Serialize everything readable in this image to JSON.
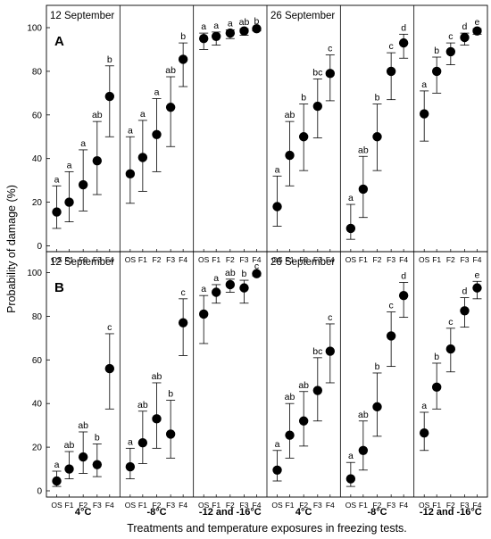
{
  "chart_data": {
    "type": "scatter",
    "ylabel": "Probability of damage (%)",
    "xlabel": "Treatments and temperature exposures in freezing tests.",
    "ylim": [
      0,
      100
    ],
    "y_ticks": [
      "0",
      "20",
      "40",
      "60",
      "80",
      "100"
    ],
    "categories": [
      "OS",
      "F1",
      "F2",
      "F3",
      "F4"
    ],
    "temperature_groups": [
      "4°C",
      "-8°C",
      "-12 and -16°C",
      "4°C",
      "-8°C",
      "-12 and -16°C"
    ],
    "rows": [
      {
        "label": "A",
        "dates": [
          {
            "text": "12 September",
            "at": 0
          },
          {
            "text": "26 September",
            "at": 3
          }
        ],
        "panels": [
          {
            "values": [
              15.5,
              20,
              28,
              39,
              68.5
            ],
            "lower": [
              8,
              11,
              16,
              23.5,
              50
            ],
            "upper": [
              27.5,
              34,
              44,
              57,
              82.5
            ],
            "letters": [
              "a",
              "a",
              "a",
              "ab",
              "b"
            ]
          },
          {
            "values": [
              33,
              40.5,
              51,
              63.5,
              85.5
            ],
            "lower": [
              19.5,
              25,
              34,
              45.5,
              73
            ],
            "upper": [
              50,
              57.5,
              67.5,
              77.5,
              93
            ],
            "letters": [
              "a",
              "a",
              "a",
              "ab",
              "b"
            ]
          },
          {
            "values": [
              95,
              96,
              97.5,
              98.5,
              99.5
            ],
            "lower": [
              90,
              92,
              95,
              96.5,
              98.5
            ],
            "upper": [
              97.5,
              98,
              99,
              99.5,
              100
            ],
            "letters": [
              "a",
              "a",
              "a",
              "ab",
              "b"
            ]
          },
          {
            "values": [
              18,
              41.5,
              50,
              64,
              79
            ],
            "lower": [
              9,
              27.5,
              34.5,
              49.5,
              66.5
            ],
            "upper": [
              32,
              57,
              65,
              76.5,
              87.5
            ],
            "letters": [
              "a",
              "ab",
              "b",
              "bc",
              "c"
            ]
          },
          {
            "values": [
              8,
              26,
              50,
              80,
              93
            ],
            "lower": [
              3,
              13,
              34.5,
              67,
              86
            ],
            "upper": [
              19,
              41,
              65,
              88.5,
              97
            ],
            "letters": [
              "a",
              "ab",
              "b",
              "c",
              "d"
            ]
          },
          {
            "values": [
              60.5,
              80,
              89,
              95.5,
              98.5
            ],
            "lower": [
              48,
              70,
              83,
              92,
              97
            ],
            "upper": [
              71,
              86.5,
              93,
              97.5,
              99.5
            ],
            "letters": [
              "a",
              "b",
              "c",
              "d",
              "e"
            ]
          }
        ]
      },
      {
        "label": "B",
        "dates": [
          {
            "text": "12 September",
            "at": 0
          },
          {
            "text": "26 September",
            "at": 3
          }
        ],
        "panels": [
          {
            "values": [
              4.5,
              10,
              15.5,
              12,
              56
            ],
            "lower": [
              2,
              5.5,
              8,
              6.5,
              37.5
            ],
            "upper": [
              9,
              18,
              27,
              21.5,
              72
            ],
            "letters": [
              "a",
              "ab",
              "ab",
              "b",
              "c"
            ]
          },
          {
            "values": [
              11,
              22,
              33,
              26,
              77
            ],
            "lower": [
              5.5,
              12.5,
              19.5,
              15,
              62
            ],
            "upper": [
              19.5,
              36.5,
              49.5,
              41.5,
              88
            ],
            "letters": [
              "a",
              "ab",
              "ab",
              "b",
              "c"
            ]
          },
          {
            "values": [
              81,
              91,
              94.5,
              93,
              99.5
            ],
            "lower": [
              67.5,
              86,
              91,
              86,
              98.5
            ],
            "upper": [
              89.5,
              94.5,
              97,
              96.5,
              100
            ],
            "letters": [
              "a",
              "a",
              "ab",
              "b",
              "c"
            ]
          },
          {
            "values": [
              9.5,
              25.5,
              32,
              46,
              64
            ],
            "lower": [
              4.5,
              15,
              20.5,
              32,
              49.5
            ],
            "upper": [
              18.5,
              40,
              45.5,
              61,
              76.5
            ],
            "letters": [
              "a",
              "ab",
              "ab",
              "bc",
              "c"
            ]
          },
          {
            "values": [
              5.5,
              18.5,
              38.5,
              71,
              89.5
            ],
            "lower": [
              2,
              9.5,
              25,
              57,
              79.5
            ],
            "upper": [
              13,
              32,
              54,
              82,
              95.5
            ],
            "letters": [
              "a",
              "ab",
              "b",
              "c",
              "d"
            ]
          },
          {
            "values": [
              26.5,
              47.5,
              65,
              82.5,
              93
            ],
            "lower": [
              18.5,
              37.5,
              54.5,
              75,
              88
            ],
            "upper": [
              36,
              58.5,
              74.5,
              88.5,
              96
            ],
            "letters": [
              "a",
              "b",
              "c",
              "d",
              "e"
            ]
          }
        ]
      }
    ]
  }
}
